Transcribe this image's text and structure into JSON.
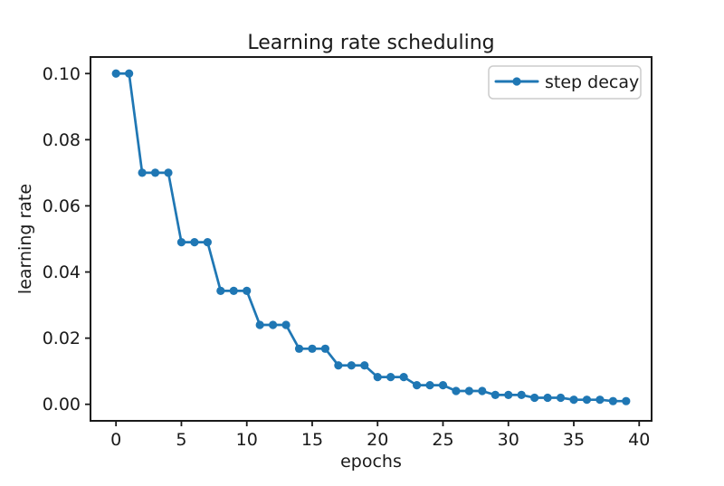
{
  "chart_data": {
    "type": "line",
    "title": "Learning rate scheduling",
    "xlabel": "epochs",
    "ylabel": "learning rate",
    "grid": false,
    "legend_position": "upper right",
    "xlim": [
      -1.95,
      40.95
    ],
    "ylim": [
      -0.005,
      0.105
    ],
    "x_ticks": [
      0,
      5,
      10,
      15,
      20,
      25,
      30,
      35,
      40
    ],
    "x_tick_labels": [
      "0",
      "5",
      "10",
      "15",
      "20",
      "25",
      "30",
      "35",
      "40"
    ],
    "y_ticks": [
      0.0,
      0.02,
      0.04,
      0.06,
      0.08,
      0.1
    ],
    "y_tick_labels": [
      "0.00",
      "0.02",
      "0.04",
      "0.06",
      "0.08",
      "0.10"
    ],
    "series": [
      {
        "name": "step decay",
        "color": "#1f77b4",
        "marker": "circle",
        "x": [
          0,
          1,
          2,
          3,
          4,
          5,
          6,
          7,
          8,
          9,
          10,
          11,
          12,
          13,
          14,
          15,
          16,
          17,
          18,
          19,
          20,
          21,
          22,
          23,
          24,
          25,
          26,
          27,
          28,
          29,
          30,
          31,
          32,
          33,
          34,
          35,
          36,
          37,
          38,
          39
        ],
        "y": [
          0.1,
          0.1,
          0.07,
          0.07,
          0.07,
          0.049,
          0.049,
          0.049,
          0.0343,
          0.0343,
          0.0343,
          0.02401,
          0.02401,
          0.02401,
          0.016807,
          0.016807,
          0.016807,
          0.0117649,
          0.0117649,
          0.0117649,
          0.0082354,
          0.0082354,
          0.0082354,
          0.0057648,
          0.0057648,
          0.0057648,
          0.0040354,
          0.0040354,
          0.0040354,
          0.0028247,
          0.0028247,
          0.0028247,
          0.0019773,
          0.0019773,
          0.0019773,
          0.0013841,
          0.0013841,
          0.0013841,
          0.0009689,
          0.0009689
        ]
      }
    ]
  },
  "colors": {
    "line": "#1f77b4",
    "text": "#1a1a1a",
    "spine": "#1a1a1a",
    "legend_border": "#cccccc",
    "background": "#ffffff"
  }
}
